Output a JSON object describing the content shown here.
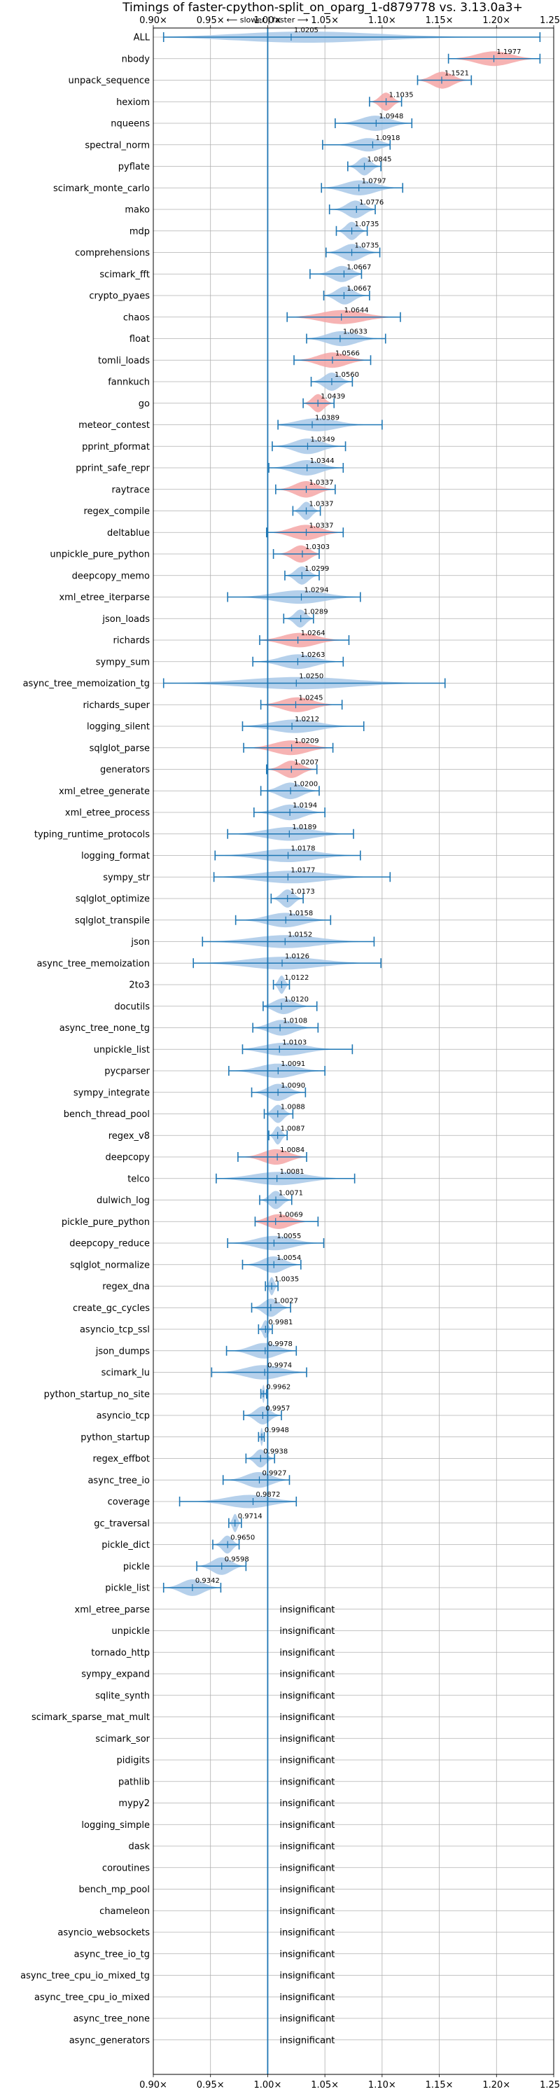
{
  "chart_data": {
    "type": "violin",
    "title": "Timings of faster-cpython-split_on_oparg_1-d879778 vs. 3.13.0a3+",
    "direction_label": "⟵ slower | faster ⟶",
    "xlim": [
      0.9,
      1.25
    ],
    "xticks": [
      0.9,
      0.95,
      1.0,
      1.05,
      1.1,
      1.15,
      1.2,
      1.25
    ],
    "xtick_labels": [
      "0.90×",
      "0.95×",
      "1.00×",
      "1.05×",
      "1.10×",
      "1.15×",
      "1.20×",
      "1.25×"
    ],
    "reference_line": 1.0,
    "grid": true,
    "insignificant_label": "insignificant",
    "colors": {
      "faster": "#a8c8e8",
      "slower": "#f4a6a6",
      "whisker": "#1f77b4",
      "grid": "#b0b0b0"
    },
    "benchmarks": [
      {
        "name": "ALL",
        "mean": 1.0205,
        "mean_label": "1.0205",
        "min": 0.909,
        "max": 1.238,
        "color": "faster"
      },
      {
        "name": "nbody",
        "mean": 1.1977,
        "mean_label": "1.1977",
        "min": 1.158,
        "max": 1.238,
        "color": "slower"
      },
      {
        "name": "unpack_sequence",
        "mean": 1.1521,
        "mean_label": "1.1521",
        "min": 1.131,
        "max": 1.178,
        "color": "slower"
      },
      {
        "name": "hexiom",
        "mean": 1.1035,
        "mean_label": "1.1035",
        "min": 1.089,
        "max": 1.117,
        "color": "slower"
      },
      {
        "name": "nqueens",
        "mean": 1.0948,
        "mean_label": "1.0948",
        "min": 1.059,
        "max": 1.126,
        "color": "faster"
      },
      {
        "name": "spectral_norm",
        "mean": 1.0918,
        "mean_label": "1.0918",
        "min": 1.048,
        "max": 1.107,
        "color": "faster"
      },
      {
        "name": "pyflate",
        "mean": 1.0845,
        "mean_label": "1.0845",
        "min": 1.07,
        "max": 1.099,
        "color": "faster"
      },
      {
        "name": "scimark_monte_carlo",
        "mean": 1.0797,
        "mean_label": "1.0797",
        "min": 1.047,
        "max": 1.118,
        "color": "faster"
      },
      {
        "name": "mako",
        "mean": 1.0776,
        "mean_label": "1.0776",
        "min": 1.054,
        "max": 1.094,
        "color": "faster"
      },
      {
        "name": "mdp",
        "mean": 1.0735,
        "mean_label": "1.0735",
        "min": 1.06,
        "max": 1.087,
        "color": "faster"
      },
      {
        "name": "comprehensions",
        "mean": 1.0735,
        "mean_label": "1.0735",
        "min": 1.051,
        "max": 1.098,
        "color": "faster"
      },
      {
        "name": "scimark_fft",
        "mean": 1.0667,
        "mean_label": "1.0667",
        "min": 1.037,
        "max": 1.082,
        "color": "faster"
      },
      {
        "name": "crypto_pyaes",
        "mean": 1.0667,
        "mean_label": "1.0667",
        "min": 1.049,
        "max": 1.089,
        "color": "faster"
      },
      {
        "name": "chaos",
        "mean": 1.0644,
        "mean_label": "1.0644",
        "min": 1.017,
        "max": 1.116,
        "color": "slower"
      },
      {
        "name": "float",
        "mean": 1.0633,
        "mean_label": "1.0633",
        "min": 1.034,
        "max": 1.103,
        "color": "faster"
      },
      {
        "name": "tomli_loads",
        "mean": 1.0566,
        "mean_label": "1.0566",
        "min": 1.023,
        "max": 1.09,
        "color": "slower"
      },
      {
        "name": "fannkuch",
        "mean": 1.056,
        "mean_label": "1.0560",
        "min": 1.038,
        "max": 1.074,
        "color": "faster"
      },
      {
        "name": "go",
        "mean": 1.0439,
        "mean_label": "1.0439",
        "min": 1.031,
        "max": 1.058,
        "color": "slower"
      },
      {
        "name": "meteor_contest",
        "mean": 1.0389,
        "mean_label": "1.0389",
        "min": 1.009,
        "max": 1.1,
        "color": "faster"
      },
      {
        "name": "pprint_pformat",
        "mean": 1.0349,
        "mean_label": "1.0349",
        "min": 1.004,
        "max": 1.068,
        "color": "faster"
      },
      {
        "name": "pprint_safe_repr",
        "mean": 1.0344,
        "mean_label": "1.0344",
        "min": 1.001,
        "max": 1.066,
        "color": "faster"
      },
      {
        "name": "raytrace",
        "mean": 1.0337,
        "mean_label": "1.0337",
        "min": 1.007,
        "max": 1.059,
        "color": "slower"
      },
      {
        "name": "regex_compile",
        "mean": 1.0337,
        "mean_label": "1.0337",
        "min": 1.022,
        "max": 1.046,
        "color": "faster"
      },
      {
        "name": "deltablue",
        "mean": 1.0337,
        "mean_label": "1.0337",
        "min": 0.999,
        "max": 1.066,
        "color": "slower"
      },
      {
        "name": "unpickle_pure_python",
        "mean": 1.0303,
        "mean_label": "1.0303",
        "min": 1.005,
        "max": 1.045,
        "color": "slower"
      },
      {
        "name": "deepcopy_memo",
        "mean": 1.0299,
        "mean_label": "1.0299",
        "min": 1.015,
        "max": 1.045,
        "color": "faster"
      },
      {
        "name": "xml_etree_iterparse",
        "mean": 1.0294,
        "mean_label": "1.0294",
        "min": 0.965,
        "max": 1.081,
        "color": "faster"
      },
      {
        "name": "json_loads",
        "mean": 1.0289,
        "mean_label": "1.0289",
        "min": 1.014,
        "max": 1.04,
        "color": "faster"
      },
      {
        "name": "richards",
        "mean": 1.0264,
        "mean_label": "1.0264",
        "min": 0.993,
        "max": 1.071,
        "color": "slower"
      },
      {
        "name": "sympy_sum",
        "mean": 1.0263,
        "mean_label": "1.0263",
        "min": 0.987,
        "max": 1.066,
        "color": "faster"
      },
      {
        "name": "async_tree_memoization_tg",
        "mean": 1.025,
        "mean_label": "1.0250",
        "min": 0.909,
        "max": 1.155,
        "color": "faster"
      },
      {
        "name": "richards_super",
        "mean": 1.0245,
        "mean_label": "1.0245",
        "min": 0.994,
        "max": 1.065,
        "color": "slower"
      },
      {
        "name": "logging_silent",
        "mean": 1.0212,
        "mean_label": "1.0212",
        "min": 0.978,
        "max": 1.084,
        "color": "faster"
      },
      {
        "name": "sqlglot_parse",
        "mean": 1.0209,
        "mean_label": "1.0209",
        "min": 0.979,
        "max": 1.057,
        "color": "slower"
      },
      {
        "name": "generators",
        "mean": 1.0207,
        "mean_label": "1.0207",
        "min": 0.999,
        "max": 1.043,
        "color": "slower"
      },
      {
        "name": "xml_etree_generate",
        "mean": 1.02,
        "mean_label": "1.0200",
        "min": 0.994,
        "max": 1.045,
        "color": "faster"
      },
      {
        "name": "xml_etree_process",
        "mean": 1.0194,
        "mean_label": "1.0194",
        "min": 0.988,
        "max": 1.05,
        "color": "faster"
      },
      {
        "name": "typing_runtime_protocols",
        "mean": 1.0189,
        "mean_label": "1.0189",
        "min": 0.965,
        "max": 1.075,
        "color": "faster"
      },
      {
        "name": "logging_format",
        "mean": 1.0178,
        "mean_label": "1.0178",
        "min": 0.954,
        "max": 1.081,
        "color": "faster"
      },
      {
        "name": "sympy_str",
        "mean": 1.0177,
        "mean_label": "1.0177",
        "min": 0.953,
        "max": 1.107,
        "color": "faster"
      },
      {
        "name": "sqlglot_optimize",
        "mean": 1.0173,
        "mean_label": "1.0173",
        "min": 1.003,
        "max": 1.031,
        "color": "faster"
      },
      {
        "name": "sqlglot_transpile",
        "mean": 1.0158,
        "mean_label": "1.0158",
        "min": 0.972,
        "max": 1.055,
        "color": "faster"
      },
      {
        "name": "json",
        "mean": 1.0152,
        "mean_label": "1.0152",
        "min": 0.943,
        "max": 1.093,
        "color": "faster"
      },
      {
        "name": "async_tree_memoization",
        "mean": 1.0126,
        "mean_label": "1.0126",
        "min": 0.935,
        "max": 1.099,
        "color": "faster"
      },
      {
        "name": "2to3",
        "mean": 1.0122,
        "mean_label": "1.0122",
        "min": 1.005,
        "max": 1.019,
        "color": "faster"
      },
      {
        "name": "docutils",
        "mean": 1.012,
        "mean_label": "1.0120",
        "min": 0.996,
        "max": 1.043,
        "color": "faster"
      },
      {
        "name": "async_tree_none_tg",
        "mean": 1.0108,
        "mean_label": "1.0108",
        "min": 0.987,
        "max": 1.044,
        "color": "faster"
      },
      {
        "name": "unpickle_list",
        "mean": 1.0103,
        "mean_label": "1.0103",
        "min": 0.978,
        "max": 1.074,
        "color": "faster"
      },
      {
        "name": "pycparser",
        "mean": 1.0091,
        "mean_label": "1.0091",
        "min": 0.966,
        "max": 1.05,
        "color": "faster"
      },
      {
        "name": "sympy_integrate",
        "mean": 1.009,
        "mean_label": "1.0090",
        "min": 0.986,
        "max": 1.033,
        "color": "faster"
      },
      {
        "name": "bench_thread_pool",
        "mean": 1.0088,
        "mean_label": "1.0088",
        "min": 0.997,
        "max": 1.022,
        "color": "faster"
      },
      {
        "name": "regex_v8",
        "mean": 1.0087,
        "mean_label": "1.0087",
        "min": 1.001,
        "max": 1.017,
        "color": "faster"
      },
      {
        "name": "deepcopy",
        "mean": 1.0084,
        "mean_label": "1.0084",
        "min": 0.974,
        "max": 1.034,
        "color": "slower"
      },
      {
        "name": "telco",
        "mean": 1.0081,
        "mean_label": "1.0081",
        "min": 0.955,
        "max": 1.076,
        "color": "faster"
      },
      {
        "name": "dulwich_log",
        "mean": 1.0071,
        "mean_label": "1.0071",
        "min": 0.993,
        "max": 1.021,
        "color": "faster"
      },
      {
        "name": "pickle_pure_python",
        "mean": 1.0069,
        "mean_label": "1.0069",
        "min": 0.989,
        "max": 1.044,
        "color": "slower"
      },
      {
        "name": "deepcopy_reduce",
        "mean": 1.0055,
        "mean_label": "1.0055",
        "min": 0.965,
        "max": 1.049,
        "color": "faster"
      },
      {
        "name": "sqlglot_normalize",
        "mean": 1.0054,
        "mean_label": "1.0054",
        "min": 0.978,
        "max": 1.029,
        "color": "faster"
      },
      {
        "name": "regex_dna",
        "mean": 1.0035,
        "mean_label": "1.0035",
        "min": 0.998,
        "max": 1.009,
        "color": "faster"
      },
      {
        "name": "create_gc_cycles",
        "mean": 1.0027,
        "mean_label": "1.0027",
        "min": 0.986,
        "max": 1.02,
        "color": "faster"
      },
      {
        "name": "asyncio_tcp_ssl",
        "mean": 0.9981,
        "mean_label": "0.9981",
        "min": 0.992,
        "max": 1.004,
        "color": "faster"
      },
      {
        "name": "json_dumps",
        "mean": 0.9978,
        "mean_label": "0.9978",
        "min": 0.964,
        "max": 1.025,
        "color": "faster"
      },
      {
        "name": "scimark_lu",
        "mean": 0.9974,
        "mean_label": "0.9974",
        "min": 0.951,
        "max": 1.034,
        "color": "faster"
      },
      {
        "name": "python_startup_no_site",
        "mean": 0.9962,
        "mean_label": "0.9962",
        "min": 0.994,
        "max": 0.999,
        "color": "faster"
      },
      {
        "name": "asyncio_tcp",
        "mean": 0.9957,
        "mean_label": "0.9957",
        "min": 0.979,
        "max": 1.012,
        "color": "faster"
      },
      {
        "name": "python_startup",
        "mean": 0.9948,
        "mean_label": "0.9948",
        "min": 0.992,
        "max": 0.997,
        "color": "faster"
      },
      {
        "name": "regex_effbot",
        "mean": 0.9938,
        "mean_label": "0.9938",
        "min": 0.981,
        "max": 1.006,
        "color": "faster"
      },
      {
        "name": "async_tree_io",
        "mean": 0.9927,
        "mean_label": "0.9927",
        "min": 0.961,
        "max": 1.019,
        "color": "faster"
      },
      {
        "name": "coverage",
        "mean": 0.9872,
        "mean_label": "0.9872",
        "min": 0.923,
        "max": 1.025,
        "color": "faster"
      },
      {
        "name": "gc_traversal",
        "mean": 0.9714,
        "mean_label": "0.9714",
        "min": 0.966,
        "max": 0.977,
        "color": "faster"
      },
      {
        "name": "pickle_dict",
        "mean": 0.965,
        "mean_label": "0.9650",
        "min": 0.952,
        "max": 0.975,
        "color": "faster"
      },
      {
        "name": "pickle",
        "mean": 0.9598,
        "mean_label": "0.9598",
        "min": 0.938,
        "max": 0.981,
        "color": "faster"
      },
      {
        "name": "pickle_list",
        "mean": 0.9342,
        "mean_label": "0.9342",
        "min": 0.909,
        "max": 0.959,
        "color": "faster"
      }
    ],
    "insignificant": [
      "xml_etree_parse",
      "unpickle",
      "tornado_http",
      "sympy_expand",
      "sqlite_synth",
      "scimark_sparse_mat_mult",
      "scimark_sor",
      "pidigits",
      "pathlib",
      "mypy2",
      "logging_simple",
      "dask",
      "coroutines",
      "bench_mp_pool",
      "chameleon",
      "asyncio_websockets",
      "async_tree_io_tg",
      "async_tree_cpu_io_mixed_tg",
      "async_tree_cpu_io_mixed",
      "async_tree_none",
      "async_generators"
    ]
  }
}
